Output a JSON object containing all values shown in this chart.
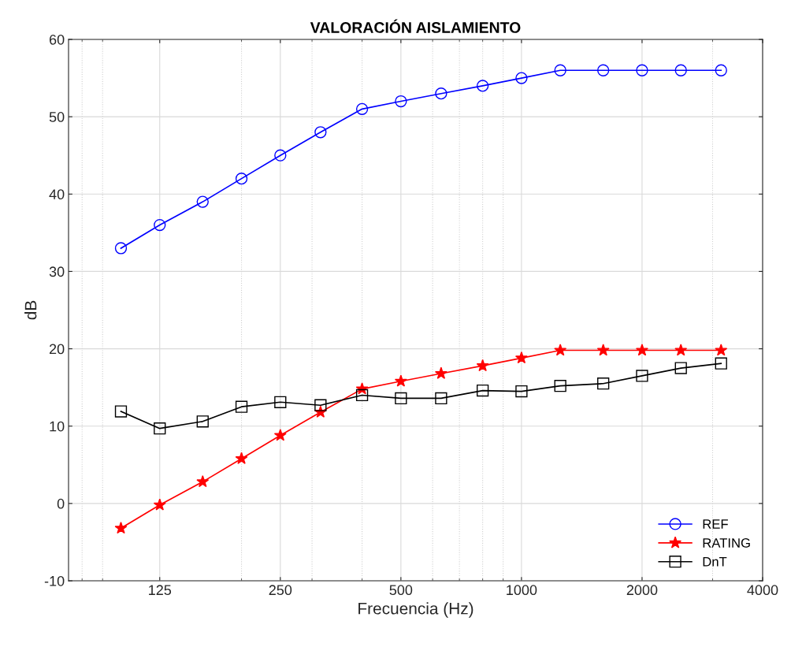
{
  "chart_data": {
    "type": "line",
    "title": "VALORACIÓN AISLAMIENTO",
    "xlabel": "Frecuencia (Hz)",
    "ylabel": "dB",
    "x": [
      100,
      125,
      160,
      200,
      250,
      315,
      400,
      500,
      630,
      800,
      1000,
      1250,
      1600,
      2000,
      2500,
      3150
    ],
    "series": [
      {
        "name": "REF",
        "color": "#0000ff",
        "marker": "circle",
        "values": [
          33,
          36,
          39,
          42,
          45,
          48,
          51,
          52,
          53,
          54,
          55,
          56,
          56,
          56,
          56,
          56
        ]
      },
      {
        "name": "RATING",
        "color": "#ff0000",
        "marker": "star",
        "values": [
          -3.2,
          -0.2,
          2.8,
          5.8,
          8.8,
          11.8,
          14.8,
          15.8,
          16.8,
          17.8,
          18.8,
          19.8,
          19.8,
          19.8,
          19.8,
          19.8
        ]
      },
      {
        "name": "DnT",
        "color": "#000000",
        "marker": "square",
        "values": [
          11.9,
          9.7,
          10.6,
          12.5,
          13.1,
          12.7,
          14.0,
          13.6,
          13.6,
          14.6,
          14.5,
          15.2,
          15.5,
          16.5,
          17.5,
          18.1
        ]
      }
    ],
    "log": "x",
    "xlim": [
      74,
      4000
    ],
    "xticks": [
      125,
      250,
      500,
      1000,
      2000,
      4000
    ],
    "ylim": [
      -10,
      60
    ],
    "yticks": [
      -10,
      0,
      10,
      20,
      30,
      40,
      50,
      60
    ],
    "grid": true,
    "legend": "bottom right",
    "line_style": "solid"
  }
}
